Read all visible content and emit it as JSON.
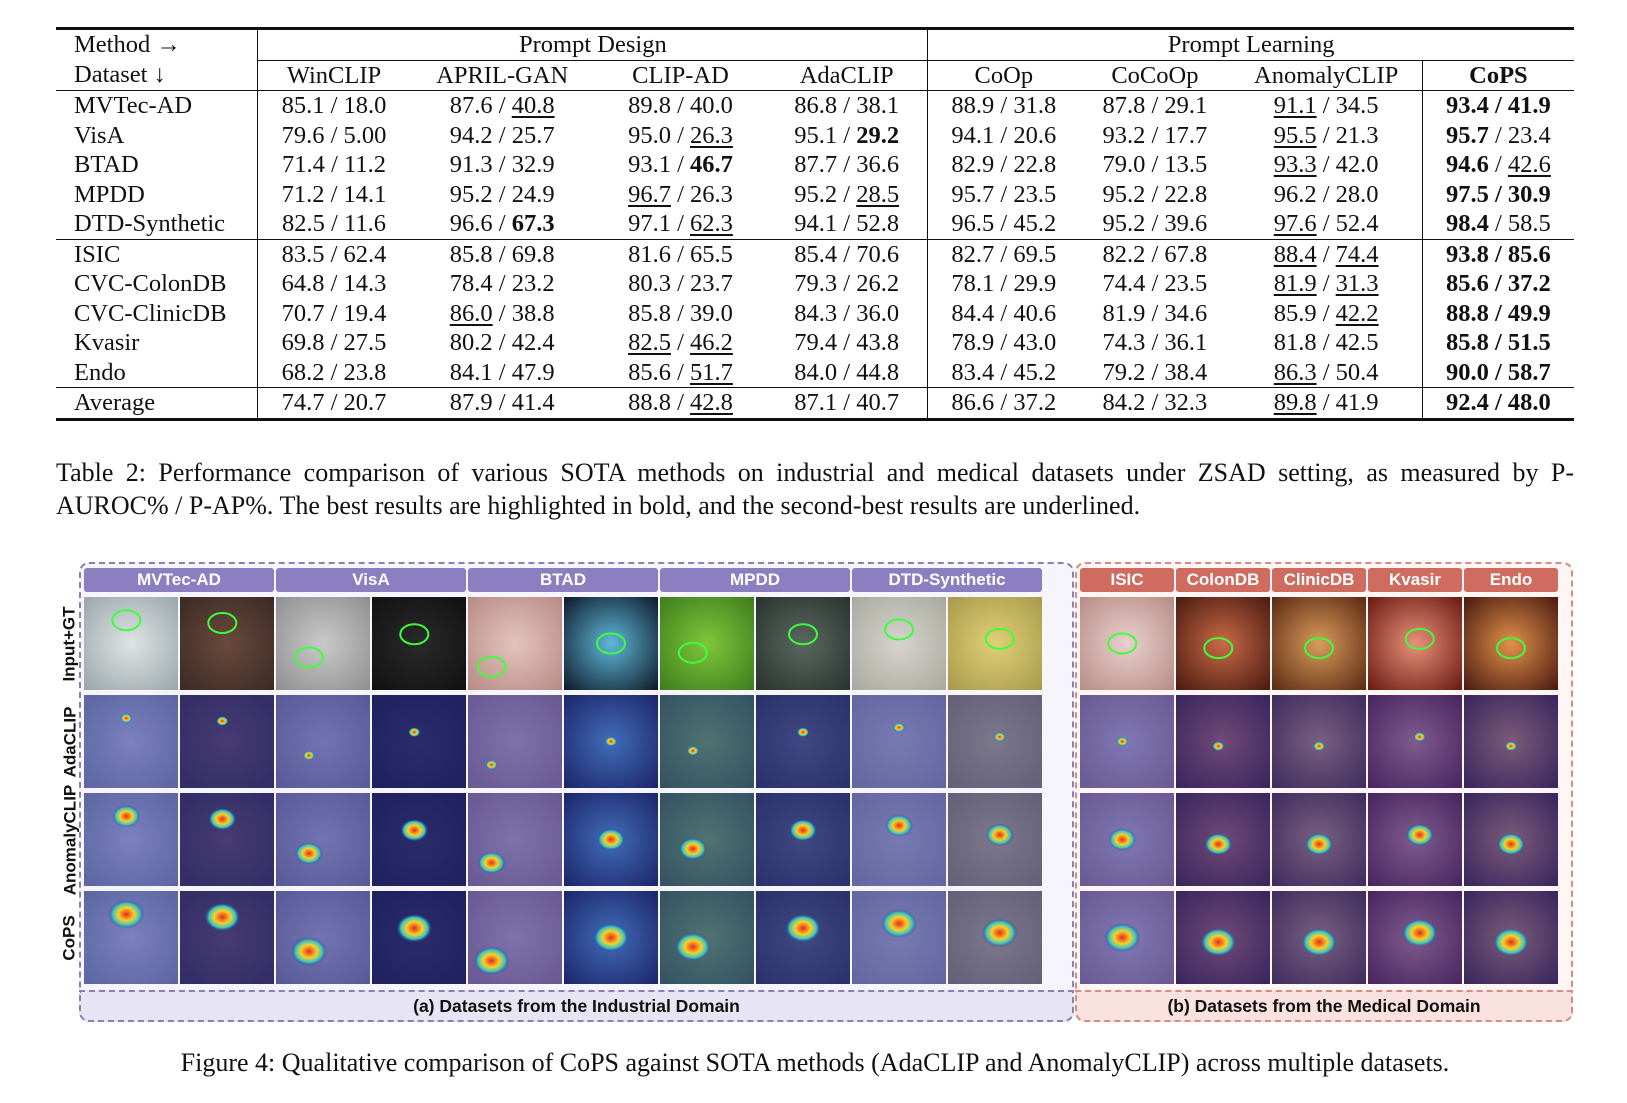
{
  "table": {
    "header_row1": {
      "c0": "Method →",
      "group1": "Prompt Design",
      "group2": "Prompt Learning"
    },
    "header_row2": [
      "Dataset ↓",
      "WinCLIP",
      "APRIL-GAN",
      "CLIP-AD",
      "AdaCLIP",
      "CoOp",
      "CoCoOp",
      "AnomalyCLIP",
      "CoPS"
    ],
    "rows": [
      [
        "MVTec-AD",
        "85.1 / 18.0",
        "87.6 / ",
        "40.8",
        "89.8 / 40.0",
        "86.8 / 38.1",
        "88.9 / 31.8",
        "87.8 / 29.1",
        "91.1",
        " / 34.5",
        "93.4 / 41.9"
      ],
      [
        "VisA",
        "79.6 / 5.00",
        "94.2 / 25.7",
        "",
        "95.0 / ",
        "26.3",
        "95.1 / ",
        "29.2",
        "94.1 / 20.6",
        "93.2 / 17.7",
        "95.5",
        " / 21.3",
        "95.7",
        " / 23.4"
      ],
      [
        "BTAD",
        "71.4 / 11.2",
        "91.3 / 32.9",
        "93.1 / ",
        "46.7",
        "87.7 / 36.6",
        "82.9 / 22.8",
        "79.0 / 13.5",
        "93.3",
        " / 42.0",
        "94.6",
        " / ",
        "42.6"
      ],
      [
        "MPDD",
        "71.2 / 14.1",
        "95.2 / 24.9",
        "96.7",
        " / 26.3",
        "95.2 / ",
        "28.5",
        "95.7 / 23.5",
        "95.2 / 22.8",
        "96.2 / 28.0",
        "97.5 / 30.9"
      ],
      [
        "DTD-Synthetic",
        "82.5 / 11.6",
        "96.6 / ",
        "67.3",
        "97.1 / ",
        "62.3",
        "94.1 / 52.8",
        "96.5 / 45.2",
        "95.2 / 39.6",
        "97.6",
        " / 52.4",
        "98.4",
        " / 58.5"
      ],
      [
        "ISIC",
        "83.5 / 62.4",
        "85.8 / 69.8",
        "81.6 / 65.5",
        "85.4 / 70.6",
        "82.7 / 69.5",
        "82.2 / 67.8",
        "88.4",
        " / ",
        "74.4",
        "93.8 / 85.6"
      ],
      [
        "CVC-ColonDB",
        "64.8 / 14.3",
        "78.4 / 23.2",
        "80.3 / 23.7",
        "79.3 / 26.2",
        "78.1 / 29.9",
        "74.4 / 23.5",
        "81.9",
        " / ",
        "31.3",
        "85.6 / 37.2"
      ],
      [
        "CVC-ClinicDB",
        "70.7 / 19.4",
        "86.0",
        " / 38.8",
        "85.8 / 39.0",
        "84.3 / 36.0",
        "84.4 / 40.6",
        "81.9 / 34.6",
        "85.9 / ",
        "42.2",
        "88.8 / 49.9"
      ],
      [
        "Kvasir",
        "69.8 / 27.5",
        "80.2 / 42.4",
        "82.5",
        " / ",
        "46.2",
        "79.4 / 43.8",
        "78.9 / 43.0",
        "74.3 / 36.1",
        "81.8 / 42.5",
        "85.8 / 51.5"
      ],
      [
        "Endo",
        "68.2 / 23.8",
        "84.1 / 47.9",
        "85.6 / ",
        "51.7",
        "84.0 / 44.8",
        "83.4 / 45.2",
        "79.2 / 38.4",
        "86.3",
        " / 50.4",
        "90.0 / 58.7"
      ],
      [
        "Average",
        "74.7 / 20.7",
        "87.9 / 41.4",
        "88.8 / ",
        "42.8",
        "87.1 / 40.7",
        "86.6 / 37.2",
        "84.2 / 32.3",
        "89.8",
        " / 41.9",
        "92.4 / 48.0"
      ]
    ]
  },
  "table_caption": "Table 2: Performance comparison of various SOTA methods on industrial and medical datasets under ZSAD setting, as measured by P-AUROC% / P-AP%. The best results are highlighted in bold, and the second-best results are underlined.",
  "figure": {
    "industrial_columns": [
      "MVTec-AD",
      "VisA",
      "BTAD",
      "MPDD",
      "DTD-Synthetic"
    ],
    "medical_columns": [
      "ISIC",
      "ColonDB",
      "ClinicDB",
      "Kvasir",
      "Endo"
    ],
    "row_labels": [
      "Input+GT",
      "AdaCLIP",
      "AnomalyCLIP",
      "CoPS"
    ],
    "panel_a_label": "(a) Datasets from the Industrial Domain",
    "panel_b_label": "(b) Datasets from the Medical Domain",
    "colors": {
      "industrial_header": "#8b7fc1",
      "medical_header": "#cf6b5f",
      "gt_contour": "#3cff3c",
      "heatmap_low": "#2a2f8f",
      "heatmap_high": "#e8291c"
    }
  },
  "figure_caption": "Figure 4: Qualitative comparison of CoPS against SOTA methods (AdaCLIP and AnomalyCLIP) across multiple datasets."
}
